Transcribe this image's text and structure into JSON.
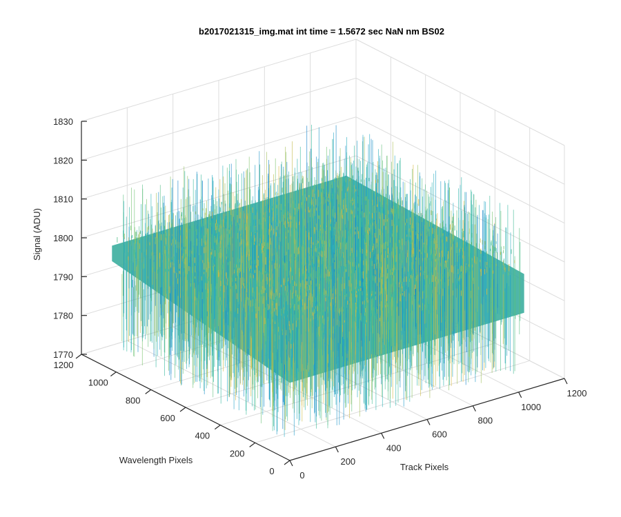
{
  "chart_data": {
    "type": "surface",
    "title": "b2017021315_img.mat int time = 1.5672 sec  NaN nm BS02",
    "xlabel": "Track Pixels",
    "ylabel": "Wavelength Pixels",
    "zlabel": "Signal (ADU)",
    "xlim": [
      0,
      1200
    ],
    "ylim": [
      0,
      1200
    ],
    "zlim": [
      1770,
      1830
    ],
    "xticks": [
      "0",
      "200",
      "400",
      "600",
      "800",
      "1000",
      "1200"
    ],
    "yticks": [
      "0",
      "200",
      "400",
      "600",
      "800",
      "1000",
      "1200"
    ],
    "zticks": [
      "1770",
      "1780",
      "1790",
      "1800",
      "1810",
      "1820",
      "1830"
    ],
    "grid": true,
    "colormap": "parula",
    "surface_extent": {
      "x": [
        0,
        1024
      ],
      "y": [
        0,
        1024
      ]
    },
    "signal_mean": 1796,
    "signal_noise_range": [
      1775,
      1822
    ],
    "colors": {
      "low": "#0f7ec9",
      "mid": "#2fb8a2",
      "high": "#e3b83a",
      "background": "#ffffff"
    }
  }
}
